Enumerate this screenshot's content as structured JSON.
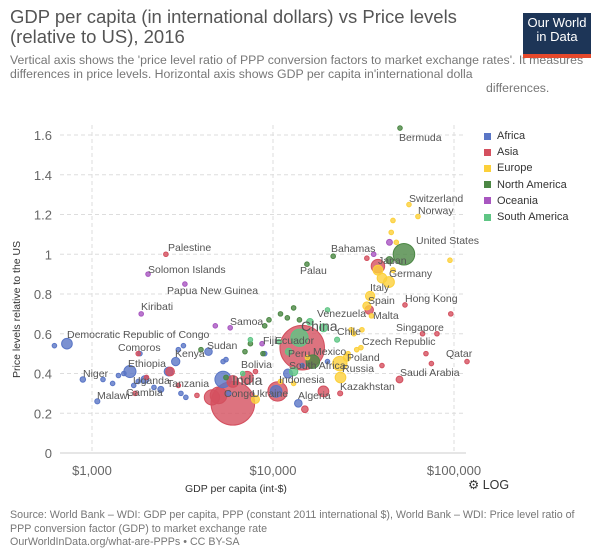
{
  "header": {
    "title": "GDP per capita (in international dollars) vs Price levels (relative to US), 2016",
    "subtitle": "Vertical axis shows the 'price level ratio of PPP conversion factors to market exchange rates'. It measures differences in price levels. Horizontal axis shows GDP per capita in'international dolla",
    "subtitle_end": "differences.",
    "logo": "Our World in Data"
  },
  "controls": {
    "log_label": "LOG",
    "log_icon": "gear-icon"
  },
  "footer": {
    "source": "Source: World Bank – WDI: GDP per capita, PPP (constant 2011 international $), World Bank – WDI: Price level ratio of PPP conversion factor (GDP) to market exchange rate",
    "link": "OurWorldInData.org/what-are-PPPs • CC BY-SA"
  },
  "chart_data": {
    "type": "scatter",
    "title": "GDP per capita (in international dollars) vs Price levels (relative to US), 2016",
    "xlabel": "GDP per capita (int-$)",
    "ylabel": "Price levels relative to the US",
    "xscale": "log",
    "xlim": [
      660,
      120000
    ],
    "ylim": [
      0,
      1.65
    ],
    "xticks": [
      {
        "v": 1000,
        "label": "$1,000"
      },
      {
        "v": 10000,
        "label": "$10,000"
      },
      {
        "v": 100000,
        "label": "$100,000"
      }
    ],
    "yticks": [
      0,
      0.2,
      0.4,
      0.6,
      0.8,
      1,
      1.2,
      1.4,
      1.6
    ],
    "grid": true,
    "legend_position": "right",
    "size_by": "population (millions)",
    "regions": [
      {
        "name": "Africa",
        "color": "#5a76c6"
      },
      {
        "name": "Asia",
        "color": "#d4505f"
      },
      {
        "name": "Europe",
        "color": "#fcd03a"
      },
      {
        "name": "North America",
        "color": "#4b8744"
      },
      {
        "name": "Oceania",
        "color": "#a856c0"
      },
      {
        "name": "South America",
        "color": "#5fc584"
      }
    ],
    "points": [
      [
        "Bermuda",
        50300,
        1.635,
        "North America",
        0.1
      ],
      [
        "Switzerland",
        56400,
        1.25,
        "Europe",
        8
      ],
      [
        "Norway",
        63200,
        1.19,
        "Europe",
        5
      ],
      [
        "United States",
        52900,
        1.0,
        "North America",
        323
      ],
      [
        "Japan",
        38000,
        0.94,
        "Asia",
        127
      ],
      [
        "Germany",
        43700,
        0.86,
        "Europe",
        82
      ],
      [
        "Italy",
        34400,
        0.79,
        "Europe",
        60
      ],
      [
        "Spain",
        33000,
        0.74,
        "Europe",
        46
      ],
      [
        "Hong Kong",
        53600,
        0.745,
        "Asia",
        7
      ],
      [
        "Malta",
        35000,
        0.69,
        "Europe",
        0.4
      ],
      [
        "Singapore",
        80500,
        0.6,
        "Asia",
        5
      ],
      [
        "Czech Republic",
        30600,
        0.53,
        "Europe",
        10
      ],
      [
        "Qatar",
        118000,
        0.46,
        "Asia",
        2
      ],
      [
        "Saudi Arabia",
        50000,
        0.37,
        "Asia",
        32
      ],
      [
        "Poland",
        25600,
        0.48,
        "Europe",
        38
      ],
      [
        "Russia",
        23400,
        0.45,
        "Europe",
        144
      ],
      [
        "Kazakhstan",
        23500,
        0.3,
        "Asia",
        18
      ],
      [
        "Mexico",
        16600,
        0.46,
        "North America",
        127
      ],
      [
        "China",
        14500,
        0.53,
        "Asia",
        1379
      ],
      [
        "Chile",
        22600,
        0.57,
        "South America",
        18
      ],
      [
        "Venezuela",
        16000,
        0.66,
        "South America",
        31
      ],
      [
        "Peru",
        12200,
        0.51,
        "South America",
        31
      ],
      [
        "Ecuador",
        10800,
        0.56,
        "South America",
        16
      ],
      [
        "Fiji",
        8700,
        0.55,
        "Oceania",
        0.9
      ],
      [
        "South Africa",
        12100,
        0.4,
        "Africa",
        56
      ],
      [
        "Indonesia",
        10600,
        0.31,
        "Asia",
        261
      ],
      [
        "Algeria",
        13800,
        0.25,
        "Africa",
        40
      ],
      [
        "Ukraine",
        8000,
        0.27,
        "Europe",
        45
      ],
      [
        "Congo",
        5700,
        0.3,
        "Africa",
        5
      ],
      [
        "India",
        6000,
        0.25,
        "Asia",
        1324
      ],
      [
        "Bolivia",
        6800,
        0.4,
        "South America",
        11
      ],
      [
        "Sudan",
        4400,
        0.51,
        "Africa",
        40
      ],
      [
        "Kenya",
        2900,
        0.46,
        "Africa",
        48
      ],
      [
        "Samoa",
        5800,
        0.63,
        "Oceania",
        0.2
      ],
      [
        "Kiribati",
        1870,
        0.7,
        "Oceania",
        0.1
      ],
      [
        "Democratic Republic of Congo",
        727,
        0.55,
        "Africa",
        79
      ],
      [
        "Comoros",
        1840,
        0.5,
        "Africa",
        0.8
      ],
      [
        "Ethiopia",
        1620,
        0.41,
        "Africa",
        102
      ],
      [
        "Niger",
        890,
        0.37,
        "Africa",
        21
      ],
      [
        "Uganda",
        1960,
        0.37,
        "Africa",
        41
      ],
      [
        "Tanzania",
        2650,
        0.41,
        "Africa",
        55
      ],
      [
        "Malawi",
        1070,
        0.26,
        "Africa",
        18
      ],
      [
        "Gambia",
        1730,
        0.3,
        "Asia",
        2
      ],
      [
        "Palestine",
        2560,
        1.0,
        "Asia",
        4.5
      ],
      [
        "Solomon Islands",
        2040,
        0.9,
        "Oceania",
        0.6
      ],
      [
        "Papua New Guinea",
        3260,
        0.85,
        "Oceania",
        8
      ],
      [
        "Bahamas",
        21500,
        0.99,
        "North America",
        0.4
      ],
      [
        "Palau",
        15400,
        0.95,
        "North America",
        0.1
      ],
      [
        "",
        620,
        0.54,
        "Africa",
        2
      ],
      [
        "",
        1150,
        0.37,
        "Africa",
        4
      ],
      [
        "",
        1300,
        0.35,
        "Africa",
        3
      ],
      [
        "",
        1400,
        0.39,
        "Africa",
        8
      ],
      [
        "",
        1500,
        0.4,
        "Africa",
        12
      ],
      [
        "",
        1800,
        0.36,
        "Africa",
        6
      ],
      [
        "",
        1700,
        0.34,
        "Africa",
        10
      ],
      [
        "",
        2200,
        0.33,
        "Africa",
        4
      ],
      [
        "",
        2400,
        0.32,
        "Africa",
        25
      ],
      [
        "",
        3100,
        0.3,
        "Africa",
        3
      ],
      [
        "",
        3300,
        0.28,
        "Africa",
        3
      ],
      [
        "",
        3000,
        0.52,
        "Africa",
        2
      ],
      [
        "",
        3200,
        0.54,
        "Africa",
        1
      ],
      [
        "",
        5500,
        0.47,
        "Africa",
        3
      ],
      [
        "",
        5300,
        0.46,
        "Africa",
        10
      ],
      [
        "",
        5300,
        0.37,
        "Africa",
        186
      ],
      [
        "",
        9000,
        0.5,
        "Africa",
        2
      ],
      [
        "",
        10400,
        0.31,
        "Africa",
        95
      ],
      [
        "",
        20000,
        0.46,
        "Africa",
        1
      ],
      [
        "",
        14500,
        0.44,
        "Africa",
        2
      ],
      [
        "",
        1800,
        0.5,
        "Asia",
        1
      ],
      [
        "",
        2000,
        0.38,
        "Asia",
        3
      ],
      [
        "",
        3000,
        0.34,
        "Asia",
        2
      ],
      [
        "",
        2700,
        0.41,
        "Asia",
        53
      ],
      [
        "",
        3800,
        0.29,
        "Asia",
        3
      ],
      [
        "",
        4600,
        0.28,
        "Asia",
        163
      ],
      [
        "",
        5000,
        0.29,
        "Asia",
        193
      ],
      [
        "",
        7200,
        0.38,
        "Asia",
        103
      ],
      [
        "",
        6000,
        0.36,
        "Asia",
        95
      ],
      [
        "",
        8000,
        0.41,
        "Asia",
        3
      ],
      [
        "",
        34000,
        0.72,
        "Asia",
        51
      ],
      [
        "",
        33000,
        0.98,
        "Asia",
        8
      ],
      [
        "",
        70000,
        0.5,
        "Asia",
        4
      ],
      [
        "",
        67000,
        0.6,
        "Asia",
        9
      ],
      [
        "",
        75000,
        0.45,
        "Asia",
        0.4
      ],
      [
        "",
        40000,
        0.44,
        "Asia",
        4
      ],
      [
        "",
        96000,
        0.7,
        "Asia",
        0.6
      ],
      [
        "",
        19000,
        0.31,
        "Asia",
        80
      ],
      [
        "",
        15000,
        0.22,
        "Asia",
        31
      ],
      [
        "",
        23600,
        0.38,
        "Europe",
        79
      ],
      [
        "",
        40000,
        0.88,
        "Europe",
        65
      ],
      [
        "",
        38000,
        0.92,
        "Europe",
        66
      ],
      [
        "",
        28000,
        0.6,
        "Europe",
        10
      ],
      [
        "",
        27000,
        0.62,
        "Europe",
        2
      ],
      [
        "",
        31000,
        0.62,
        "Europe",
        1
      ],
      [
        "",
        26000,
        0.5,
        "Europe",
        5
      ],
      [
        "",
        29000,
        0.52,
        "Europe",
        2
      ],
      [
        "",
        46000,
        0.92,
        "Europe",
        17
      ],
      [
        "",
        48000,
        1.06,
        "Europe",
        9
      ],
      [
        "",
        46000,
        1.17,
        "Europe",
        6
      ],
      [
        "",
        45000,
        1.11,
        "Europe",
        5
      ],
      [
        "",
        95000,
        0.97,
        "Europe",
        0.6
      ],
      [
        "",
        11000,
        0.36,
        "Europe",
        7
      ],
      [
        "",
        13000,
        0.35,
        "Europe",
        3
      ],
      [
        "",
        15500,
        0.48,
        "Europe",
        4
      ],
      [
        "",
        44000,
        1.06,
        "Oceania",
        24
      ],
      [
        "",
        36000,
        1.0,
        "Oceania",
        5
      ],
      [
        "",
        4800,
        0.64,
        "Oceania",
        0.3
      ],
      [
        "",
        44000,
        0.97,
        "North America",
        36
      ],
      [
        "",
        9000,
        0.64,
        "North America",
        1
      ],
      [
        "",
        9500,
        0.67,
        "North America",
        0.3
      ],
      [
        "",
        11000,
        0.7,
        "North America",
        1
      ],
      [
        "",
        12000,
        0.68,
        "North America",
        0.3
      ],
      [
        "",
        13000,
        0.73,
        "North America",
        0.3
      ],
      [
        "",
        8800,
        0.5,
        "North America",
        3
      ],
      [
        "",
        7500,
        0.55,
        "North America",
        6
      ],
      [
        "",
        7000,
        0.51,
        "North America",
        9
      ],
      [
        "",
        4000,
        0.52,
        "North America",
        11
      ],
      [
        "",
        14000,
        0.67,
        "North America",
        5
      ],
      [
        "",
        5500,
        0.38,
        "North America",
        16
      ],
      [
        "",
        14000,
        0.58,
        "South America",
        208
      ],
      [
        "",
        13000,
        0.41,
        "South America",
        49
      ],
      [
        "",
        19000,
        0.63,
        "South America",
        44
      ],
      [
        "",
        7500,
        0.57,
        "South America",
        7
      ],
      [
        "",
        20000,
        0.72,
        "South America",
        3
      ]
    ]
  }
}
